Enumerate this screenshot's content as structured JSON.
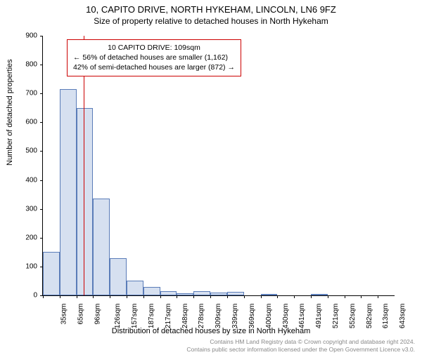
{
  "header": {
    "address": "10, CAPITO DRIVE, NORTH HYKEHAM, LINCOLN, LN6 9FZ",
    "subtitle": "Size of property relative to detached houses in North Hykeham"
  },
  "chart": {
    "type": "histogram",
    "ylabel": "Number of detached properties",
    "xlabel": "Distribution of detached houses by size in North Hykeham",
    "ylim": [
      0,
      900
    ],
    "ytick_step": 100,
    "yticks": [
      0,
      100,
      200,
      300,
      400,
      500,
      600,
      700,
      800,
      900
    ],
    "xticks": [
      "35sqm",
      "65sqm",
      "96sqm",
      "126sqm",
      "157sqm",
      "187sqm",
      "217sqm",
      "248sqm",
      "278sqm",
      "309sqm",
      "339sqm",
      "369sqm",
      "400sqm",
      "430sqm",
      "461sqm",
      "491sqm",
      "521sqm",
      "552sqm",
      "582sqm",
      "613sqm",
      "643sqm"
    ],
    "bars": [
      150,
      715,
      650,
      335,
      130,
      50,
      30,
      15,
      8,
      15,
      10,
      12,
      0,
      3,
      0,
      0,
      3,
      0,
      0,
      0
    ],
    "bar_fill": "#d6e0f0",
    "bar_stroke": "#5a7cb8",
    "background_color": "#ffffff",
    "axis_color": "#000000",
    "marker_line_x_sqm": 109,
    "marker_color": "#cc0000",
    "tick_fontsize": 10,
    "label_fontsize": 11
  },
  "infobox": {
    "line1": "10 CAPITO DRIVE: 109sqm",
    "line2": "← 56% of detached houses are smaller (1,162)",
    "line3": "42% of semi-detached houses are larger (872) →",
    "border_color": "#cc0000"
  },
  "footer": {
    "line1": "Contains HM Land Registry data © Crown copyright and database right 2024.",
    "line2": "Contains public sector information licensed under the Open Government Licence v3.0."
  }
}
